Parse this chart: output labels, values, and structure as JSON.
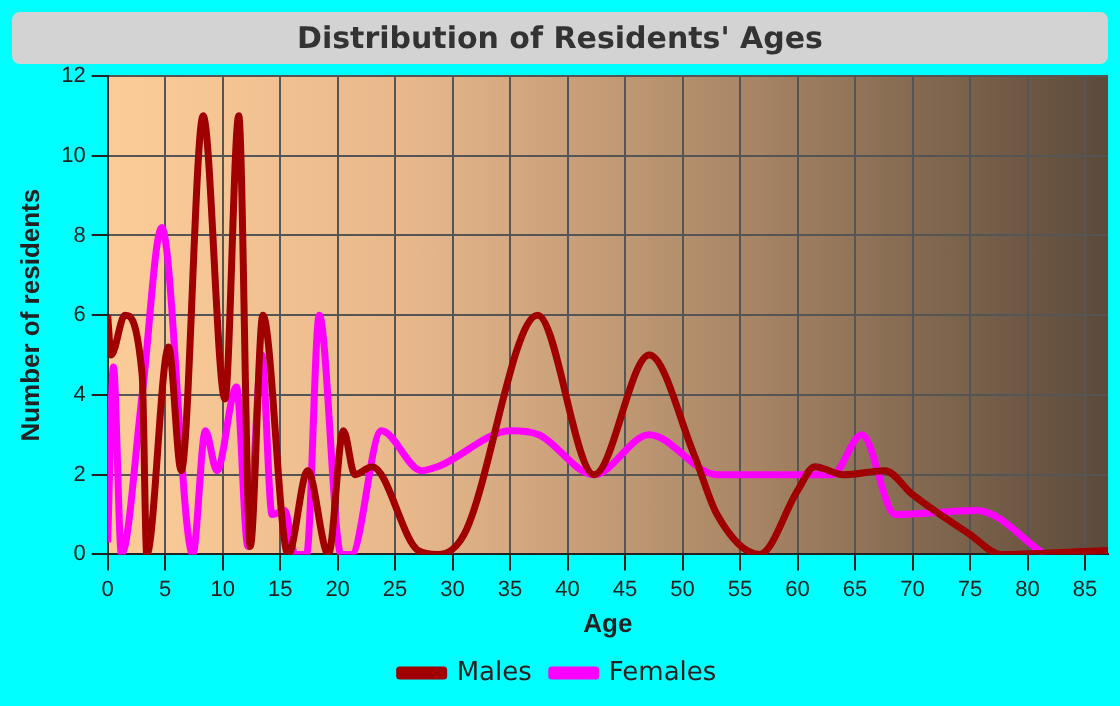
{
  "chart_data": {
    "type": "line",
    "title": "Distribution of Residents' Ages",
    "xlabel": "Age",
    "ylabel": "Number of residents",
    "xlim": [
      0,
      87
    ],
    "xticks": [
      0,
      5,
      10,
      15,
      20,
      25,
      30,
      35,
      40,
      45,
      50,
      55,
      60,
      65,
      70,
      75,
      80,
      85
    ],
    "ylim": [
      0,
      12
    ],
    "yticks": [
      0,
      2,
      4,
      6,
      8,
      10,
      12
    ],
    "grid": true,
    "legend": "bottom",
    "marker": "none",
    "line_style": "solid",
    "series": [
      {
        "name": "Males",
        "color": "#a00000",
        "x": [
          0,
          0.3,
          1.5,
          3,
          3.4,
          5.3,
          6.4,
          8.3,
          10.2,
          11.4,
          12.4,
          13.5,
          15.7,
          17.4,
          19.2,
          20.5,
          21.5,
          23,
          27,
          28.7,
          31,
          37.4,
          42.3,
          47.1,
          51,
          53,
          56.7,
          60,
          61.5,
          64,
          67.6,
          70,
          75,
          77.7,
          87
        ],
        "values": [
          6,
          5,
          6,
          4.5,
          0,
          5.2,
          2.1,
          11,
          3.9,
          11,
          0.2,
          6,
          0,
          2.1,
          0,
          3.1,
          2,
          2.2,
          0.1,
          0,
          0.5,
          6,
          2,
          5,
          2.5,
          1,
          0,
          1.6,
          2.2,
          2,
          2.1,
          1.5,
          0.5,
          0,
          0.1
        ]
      },
      {
        "name": "Females",
        "color": "#ff00ff",
        "x": [
          0,
          0.5,
          1.2,
          3,
          4.7,
          7.4,
          8.5,
          9.5,
          11.2,
          12.2,
          13.4,
          14.3,
          15.4,
          16.3,
          17.3,
          18.4,
          20.3,
          21.2,
          23.8,
          27.3,
          28.7,
          35.1,
          37.5,
          42.3,
          47.1,
          53,
          60,
          63,
          65.6,
          68.5,
          75.6,
          81.5
        ],
        "values": [
          0.3,
          4.7,
          0,
          4,
          8.2,
          0,
          3.1,
          2.1,
          4.2,
          0.2,
          5,
          1,
          1.1,
          0,
          0,
          6,
          0,
          0,
          3.1,
          2.1,
          2.2,
          3.1,
          3,
          2,
          3,
          2,
          2,
          2,
          3,
          1,
          1.1,
          0
        ]
      }
    ]
  }
}
